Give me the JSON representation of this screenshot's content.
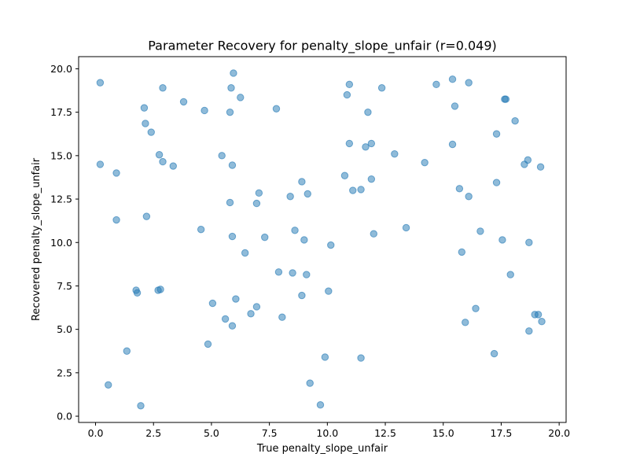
{
  "chart_data": {
    "type": "scatter",
    "title": "Parameter Recovery for penalty_slope_unfair (r=0.049)",
    "xlabel": "True penalty_slope_unfair",
    "ylabel": "Recovered penalty_slope_unfair",
    "xlim": [
      -0.73,
      20.3
    ],
    "ylim": [
      -0.36,
      20.7
    ],
    "xticks": [
      "0.0",
      "2.5",
      "5.0",
      "7.5",
      "10.0",
      "12.5",
      "15.0",
      "17.5",
      "20.0"
    ],
    "yticks": [
      "0.0",
      "2.5",
      "5.0",
      "7.5",
      "10.0",
      "12.5",
      "15.0",
      "17.5",
      "20.0"
    ],
    "xtick_values": [
      0,
      2.5,
      5,
      7.5,
      10,
      12.5,
      15,
      17.5,
      20
    ],
    "ytick_values": [
      0,
      2.5,
      5,
      7.5,
      10,
      12.5,
      15,
      17.5,
      20
    ],
    "grid": false,
    "color": "#1f77b4",
    "series": [
      {
        "points": [
          [
            0.2,
            19.2
          ],
          [
            2.1,
            17.75
          ],
          [
            2.15,
            16.85
          ],
          [
            2.4,
            16.35
          ],
          [
            2.9,
            18.9
          ],
          [
            3.8,
            18.1
          ],
          [
            4.7,
            17.6
          ],
          [
            5.8,
            17.5
          ],
          [
            5.85,
            18.9
          ],
          [
            5.95,
            19.75
          ],
          [
            6.25,
            18.35
          ],
          [
            7.8,
            17.7
          ],
          [
            10.85,
            18.5
          ],
          [
            10.95,
            19.1
          ],
          [
            11.75,
            17.5
          ],
          [
            12.35,
            18.9
          ],
          [
            14.7,
            19.1
          ],
          [
            15.4,
            19.4
          ],
          [
            15.5,
            17.85
          ],
          [
            16.1,
            19.2
          ],
          [
            17.65,
            18.25
          ],
          [
            17.7,
            18.25
          ],
          [
            18.1,
            17.0
          ],
          [
            0.2,
            14.5
          ],
          [
            0.9,
            14.0
          ],
          [
            2.75,
            15.05
          ],
          [
            2.9,
            14.65
          ],
          [
            3.35,
            14.4
          ],
          [
            5.45,
            15.0
          ],
          [
            5.9,
            14.45
          ],
          [
            8.9,
            13.5
          ],
          [
            10.75,
            13.85
          ],
          [
            10.95,
            15.7
          ],
          [
            11.1,
            13.0
          ],
          [
            11.45,
            13.05
          ],
          [
            11.65,
            15.5
          ],
          [
            11.9,
            15.7
          ],
          [
            11.9,
            13.65
          ],
          [
            12.9,
            15.1
          ],
          [
            14.2,
            14.6
          ],
          [
            15.4,
            15.65
          ],
          [
            15.7,
            13.1
          ],
          [
            16.1,
            12.65
          ],
          [
            17.3,
            16.25
          ],
          [
            17.3,
            13.45
          ],
          [
            18.5,
            14.5
          ],
          [
            18.65,
            14.75
          ],
          [
            19.2,
            14.35
          ],
          [
            0.9,
            11.3
          ],
          [
            2.2,
            11.5
          ],
          [
            4.55,
            10.75
          ],
          [
            5.8,
            12.3
          ],
          [
            5.9,
            10.35
          ],
          [
            6.45,
            9.4
          ],
          [
            6.95,
            12.25
          ],
          [
            7.05,
            12.85
          ],
          [
            7.3,
            10.3
          ],
          [
            8.4,
            12.65
          ],
          [
            8.6,
            10.7
          ],
          [
            9.0,
            10.15
          ],
          [
            9.15,
            12.8
          ],
          [
            10.15,
            9.85
          ],
          [
            12.0,
            10.5
          ],
          [
            13.4,
            10.85
          ],
          [
            15.8,
            9.45
          ],
          [
            16.6,
            10.65
          ],
          [
            17.55,
            10.15
          ],
          [
            18.7,
            10.0
          ],
          [
            1.75,
            7.25
          ],
          [
            1.8,
            7.1
          ],
          [
            2.7,
            7.25
          ],
          [
            2.8,
            7.3
          ],
          [
            5.05,
            6.5
          ],
          [
            6.05,
            6.75
          ],
          [
            6.7,
            5.9
          ],
          [
            6.95,
            6.3
          ],
          [
            7.9,
            8.3
          ],
          [
            8.5,
            8.25
          ],
          [
            8.9,
            6.95
          ],
          [
            9.1,
            8.15
          ],
          [
            10.05,
            7.2
          ],
          [
            17.9,
            8.15
          ],
          [
            1.35,
            3.75
          ],
          [
            4.85,
            4.15
          ],
          [
            5.6,
            5.6
          ],
          [
            5.9,
            5.2
          ],
          [
            8.05,
            5.7
          ],
          [
            9.9,
            3.4
          ],
          [
            11.45,
            3.35
          ],
          [
            15.95,
            5.4
          ],
          [
            16.4,
            6.2
          ],
          [
            17.2,
            3.6
          ],
          [
            18.7,
            4.9
          ],
          [
            18.95,
            5.85
          ],
          [
            19.1,
            5.85
          ],
          [
            19.25,
            5.45
          ],
          [
            0.55,
            1.8
          ],
          [
            1.95,
            0.6
          ],
          [
            9.25,
            1.9
          ],
          [
            9.7,
            0.65
          ]
        ]
      }
    ]
  }
}
